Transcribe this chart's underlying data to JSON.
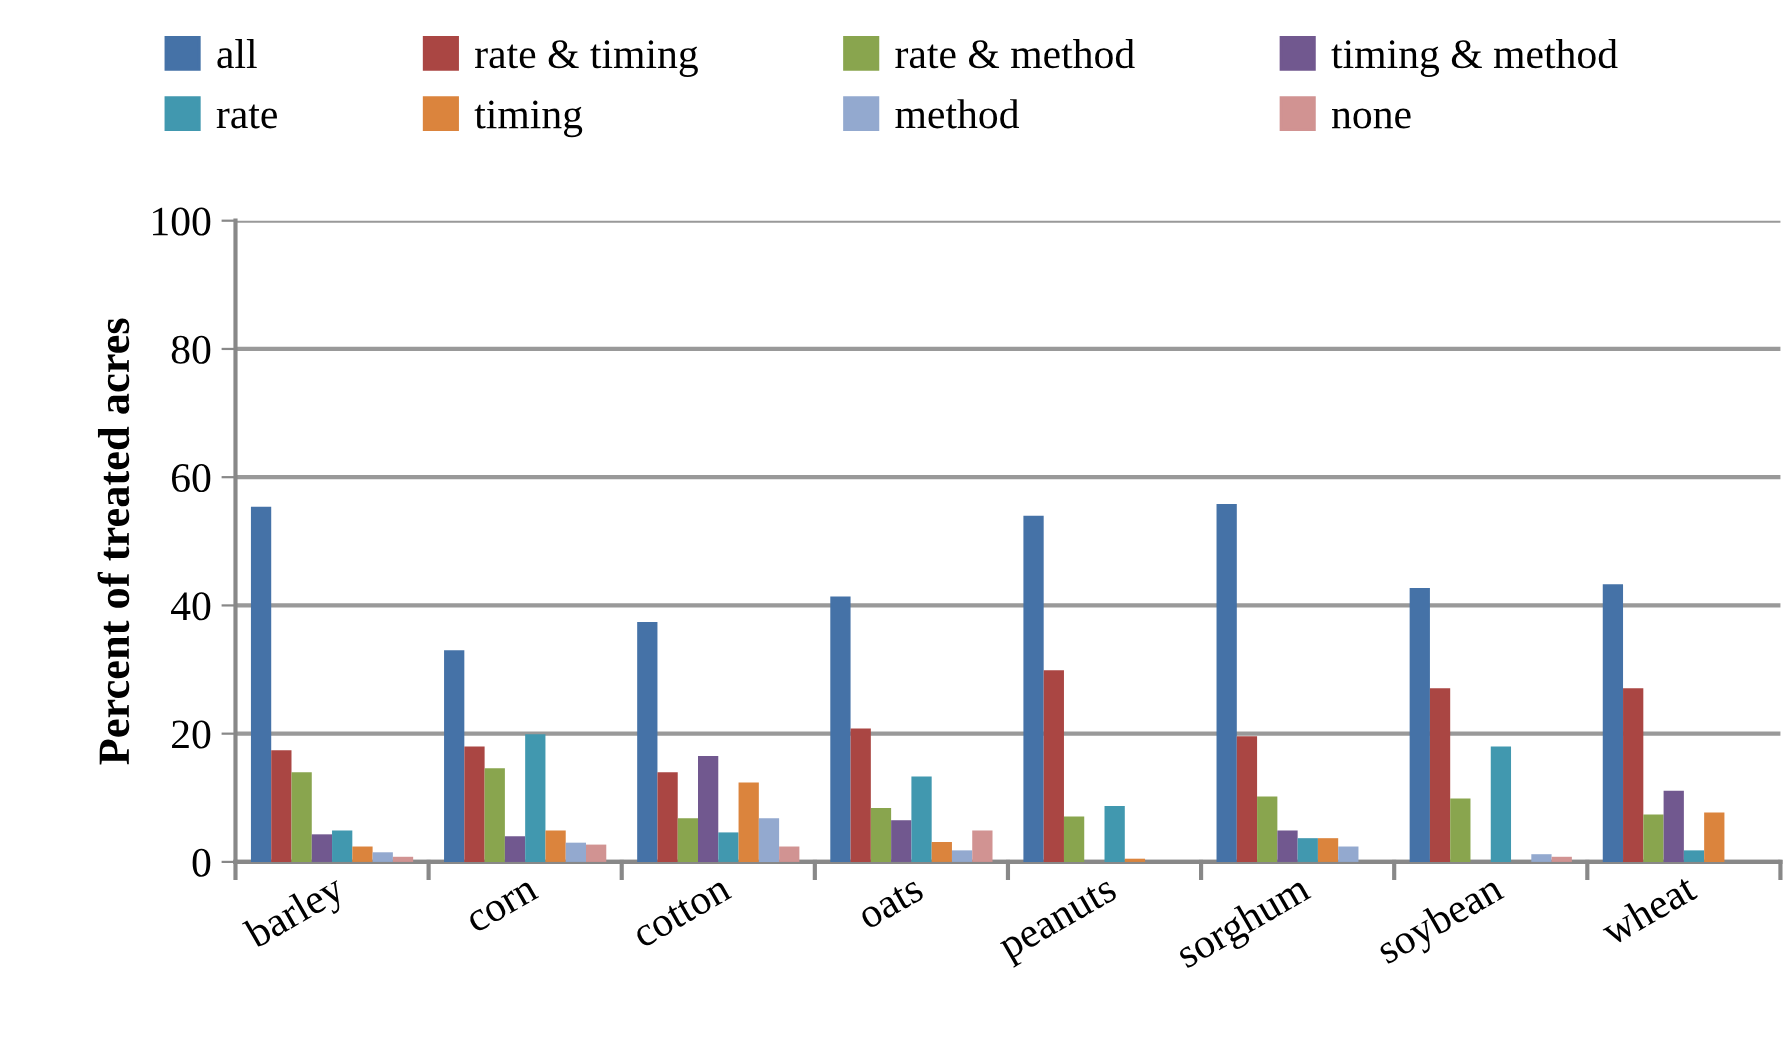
{
  "chart_data": {
    "type": "bar",
    "ylabel": "Percent of treated acres",
    "categories": [
      "barley",
      "corn",
      "cotton",
      "oats",
      "peanuts",
      "sorghum",
      "soybean",
      "wheat"
    ],
    "series": [
      {
        "name": "all",
        "color": "#4572a7",
        "values": [
          55.4,
          33.0,
          37.4,
          41.4,
          54.0,
          55.8,
          42.7,
          43.3
        ]
      },
      {
        "name": "rate & timing",
        "color": "#aa4643",
        "values": [
          17.4,
          18.0,
          14.0,
          20.8,
          29.9,
          19.6,
          27.1,
          27.1
        ]
      },
      {
        "name": "rate & method",
        "color": "#89a54e",
        "values": [
          14.0,
          14.6,
          6.8,
          8.4,
          7.1,
          10.2,
          9.9,
          7.4
        ]
      },
      {
        "name": "timing & method",
        "color": "#71588f",
        "values": [
          4.3,
          4.0,
          16.5,
          6.5,
          0,
          4.9,
          0,
          11.1
        ]
      },
      {
        "name": "rate",
        "color": "#4198af",
        "values": [
          4.9,
          19.9,
          4.6,
          13.3,
          8.7,
          3.7,
          18.0,
          1.8
        ]
      },
      {
        "name": "timing",
        "color": "#db843d",
        "values": [
          2.4,
          4.9,
          12.4,
          3.1,
          0.5,
          3.7,
          0,
          7.7
        ]
      },
      {
        "name": "method",
        "color": "#93a9cf",
        "values": [
          1.5,
          3.0,
          6.8,
          1.8,
          0,
          2.4,
          1.2,
          0
        ]
      },
      {
        "name": "none",
        "color": "#d19392",
        "values": [
          0.8,
          2.7,
          2.4,
          4.9,
          0,
          0,
          0.8,
          0
        ]
      }
    ],
    "ylim": [
      0,
      100
    ],
    "yticks": [
      0,
      20,
      40,
      60,
      80,
      100
    ],
    "grid": "y",
    "legend": "top"
  }
}
